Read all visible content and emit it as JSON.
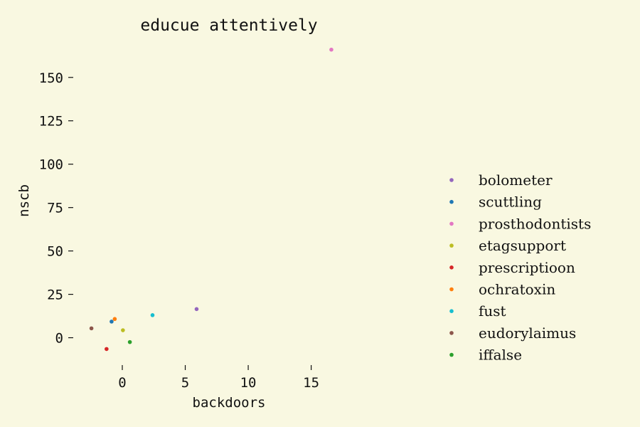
{
  "chart_data": {
    "type": "scatter",
    "title": "educue attentively",
    "xlabel": "backdoors",
    "ylabel": "nscb",
    "xlim": [
      -3.5,
      20.5
    ],
    "ylim": [
      -17,
      170
    ],
    "xticks": [
      0,
      5,
      10,
      15
    ],
    "yticks": [
      0,
      25,
      50,
      75,
      100,
      125,
      150
    ],
    "grid": false,
    "legend_position": "right",
    "series": [
      {
        "name": "bolometer",
        "color": "#9467bd",
        "x": [
          5.9
        ],
        "y": [
          16.5
        ]
      },
      {
        "name": "scuttling",
        "color": "#1f77b4",
        "x": [
          -0.85
        ],
        "y": [
          9.3
        ]
      },
      {
        "name": "prosthodontists",
        "color": "#e377c2",
        "x": [
          16.6
        ],
        "y": [
          166.0
        ]
      },
      {
        "name": "etagsupport",
        "color": "#bcbd22",
        "x": [
          0.05
        ],
        "y": [
          4.3
        ]
      },
      {
        "name": "prescriptioon",
        "color": "#d62728",
        "x": [
          -1.25
        ],
        "y": [
          -6.5
        ]
      },
      {
        "name": "ochratoxin",
        "color": "#ff7f0e",
        "x": [
          -0.6
        ],
        "y": [
          10.8
        ]
      },
      {
        "name": "fust",
        "color": "#17becf",
        "x": [
          2.4
        ],
        "y": [
          13.0
        ]
      },
      {
        "name": "eudorylaimus",
        "color": "#8c564b",
        "x": [
          -2.45
        ],
        "y": [
          5.4
        ]
      },
      {
        "name": "iffalse",
        "color": "#2ca02c",
        "x": [
          0.6
        ],
        "y": [
          -2.5
        ]
      }
    ]
  }
}
